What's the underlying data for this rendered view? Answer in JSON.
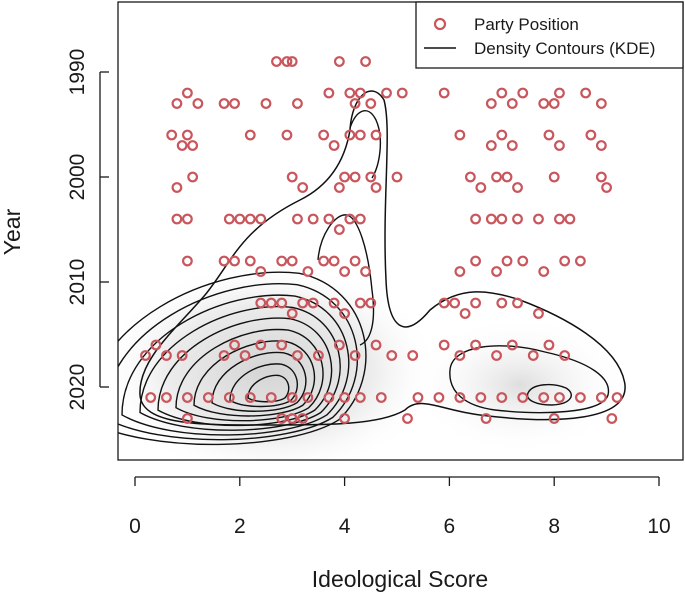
{
  "chart_data": {
    "type": "scatter",
    "title": "",
    "xlabel": "Ideological Score",
    "ylabel": "Year",
    "xlim": [
      -0.5,
      10.3
    ],
    "ylim": [
      2028.5,
      1984.5
    ],
    "y_reversed": true,
    "x_ticks": [
      "0",
      "2",
      "4",
      "6",
      "8",
      "10"
    ],
    "y_ticks": [
      "1990",
      "2000",
      "2010",
      "2020"
    ],
    "grid": false,
    "legend_position": "top-right",
    "colors": {
      "points": "#c8565c",
      "contours": "#111111",
      "density_fill": "#c9c9c9"
    },
    "legend": [
      {
        "label": "Party Position",
        "marker": "circle"
      },
      {
        "label": "Density Contours (KDE)",
        "marker": "line"
      }
    ],
    "series": [
      {
        "name": "Party Position",
        "points": [
          [
            2.7,
            1989
          ],
          [
            2.9,
            1989
          ],
          [
            3.0,
            1989
          ],
          [
            3.9,
            1989
          ],
          [
            4.4,
            1989
          ],
          [
            0.8,
            1993
          ],
          [
            1.0,
            1992
          ],
          [
            1.2,
            1993
          ],
          [
            1.7,
            1993
          ],
          [
            1.9,
            1993
          ],
          [
            2.5,
            1993
          ],
          [
            3.1,
            1993
          ],
          [
            3.7,
            1992
          ],
          [
            4.1,
            1992
          ],
          [
            4.2,
            1993
          ],
          [
            4.3,
            1992
          ],
          [
            4.5,
            1993
          ],
          [
            4.8,
            1992
          ],
          [
            5.1,
            1992
          ],
          [
            5.9,
            1992
          ],
          [
            6.8,
            1993
          ],
          [
            7.0,
            1992
          ],
          [
            7.2,
            1993
          ],
          [
            7.4,
            1992
          ],
          [
            7.8,
            1993
          ],
          [
            8.0,
            1993
          ],
          [
            8.1,
            1992
          ],
          [
            8.6,
            1992
          ],
          [
            8.9,
            1993
          ],
          [
            0.7,
            1996
          ],
          [
            0.9,
            1997
          ],
          [
            1.0,
            1996
          ],
          [
            1.1,
            1997
          ],
          [
            2.2,
            1996
          ],
          [
            2.9,
            1996
          ],
          [
            3.6,
            1996
          ],
          [
            3.8,
            1997
          ],
          [
            4.1,
            1996
          ],
          [
            4.3,
            1996
          ],
          [
            4.6,
            1996
          ],
          [
            6.2,
            1996
          ],
          [
            6.8,
            1997
          ],
          [
            7.0,
            1996
          ],
          [
            7.2,
            1997
          ],
          [
            7.9,
            1996
          ],
          [
            8.1,
            1997
          ],
          [
            8.7,
            1996
          ],
          [
            8.9,
            1997
          ],
          [
            0.8,
            2001
          ],
          [
            1.1,
            2000
          ],
          [
            3.0,
            2000
          ],
          [
            3.2,
            2001
          ],
          [
            3.9,
            2001
          ],
          [
            4.0,
            2000
          ],
          [
            4.2,
            2000
          ],
          [
            4.5,
            2000
          ],
          [
            4.6,
            2001
          ],
          [
            5.0,
            2000
          ],
          [
            6.4,
            2000
          ],
          [
            6.6,
            2001
          ],
          [
            6.9,
            2000
          ],
          [
            7.1,
            2000
          ],
          [
            7.3,
            2001
          ],
          [
            8.0,
            2000
          ],
          [
            8.9,
            2000
          ],
          [
            9.0,
            2001
          ],
          [
            0.8,
            2004
          ],
          [
            1.0,
            2004
          ],
          [
            1.8,
            2004
          ],
          [
            2.0,
            2004
          ],
          [
            2.2,
            2004
          ],
          [
            2.4,
            2004
          ],
          [
            3.1,
            2004
          ],
          [
            3.4,
            2004
          ],
          [
            3.7,
            2004
          ],
          [
            3.9,
            2005
          ],
          [
            4.1,
            2004
          ],
          [
            4.3,
            2004
          ],
          [
            6.5,
            2004
          ],
          [
            6.8,
            2004
          ],
          [
            7.0,
            2004
          ],
          [
            7.3,
            2004
          ],
          [
            7.7,
            2004
          ],
          [
            8.1,
            2004
          ],
          [
            8.3,
            2004
          ],
          [
            1.0,
            2008
          ],
          [
            1.7,
            2008
          ],
          [
            1.9,
            2008
          ],
          [
            2.2,
            2008
          ],
          [
            2.4,
            2009
          ],
          [
            2.8,
            2008
          ],
          [
            3.0,
            2008
          ],
          [
            3.3,
            2009
          ],
          [
            3.6,
            2008
          ],
          [
            3.8,
            2008
          ],
          [
            4.0,
            2009
          ],
          [
            4.2,
            2008
          ],
          [
            4.4,
            2009
          ],
          [
            6.2,
            2009
          ],
          [
            6.5,
            2008
          ],
          [
            6.9,
            2009
          ],
          [
            7.1,
            2008
          ],
          [
            7.4,
            2008
          ],
          [
            7.8,
            2009
          ],
          [
            8.2,
            2008
          ],
          [
            8.5,
            2008
          ],
          [
            2.4,
            2012
          ],
          [
            2.6,
            2012
          ],
          [
            2.8,
            2012
          ],
          [
            3.0,
            2013
          ],
          [
            3.2,
            2012
          ],
          [
            3.4,
            2012
          ],
          [
            3.8,
            2012
          ],
          [
            4.0,
            2013
          ],
          [
            4.3,
            2012
          ],
          [
            4.5,
            2012
          ],
          [
            5.9,
            2012
          ],
          [
            6.1,
            2012
          ],
          [
            6.3,
            2013
          ],
          [
            6.5,
            2012
          ],
          [
            7.0,
            2012
          ],
          [
            7.3,
            2012
          ],
          [
            7.7,
            2013
          ],
          [
            0.2,
            2017
          ],
          [
            0.4,
            2016
          ],
          [
            0.6,
            2017
          ],
          [
            0.9,
            2017
          ],
          [
            1.7,
            2017
          ],
          [
            1.9,
            2016
          ],
          [
            2.1,
            2017
          ],
          [
            2.4,
            2016
          ],
          [
            2.8,
            2016
          ],
          [
            3.1,
            2017
          ],
          [
            3.5,
            2017
          ],
          [
            3.9,
            2016
          ],
          [
            4.2,
            2017
          ],
          [
            4.6,
            2016
          ],
          [
            4.9,
            2017
          ],
          [
            5.3,
            2017
          ],
          [
            5.9,
            2016
          ],
          [
            6.2,
            2017
          ],
          [
            6.5,
            2016
          ],
          [
            6.9,
            2017
          ],
          [
            7.2,
            2016
          ],
          [
            7.6,
            2017
          ],
          [
            7.9,
            2016
          ],
          [
            8.2,
            2017
          ],
          [
            0.3,
            2021
          ],
          [
            0.6,
            2021
          ],
          [
            1.0,
            2021
          ],
          [
            1.4,
            2021
          ],
          [
            1.8,
            2021
          ],
          [
            2.2,
            2021
          ],
          [
            2.6,
            2021
          ],
          [
            3.0,
            2021
          ],
          [
            3.3,
            2021
          ],
          [
            3.7,
            2021
          ],
          [
            4.0,
            2021
          ],
          [
            4.3,
            2021
          ],
          [
            4.7,
            2021
          ],
          [
            5.4,
            2021
          ],
          [
            5.8,
            2021
          ],
          [
            6.2,
            2021
          ],
          [
            6.6,
            2021
          ],
          [
            7.0,
            2021
          ],
          [
            7.4,
            2021
          ],
          [
            7.8,
            2021
          ],
          [
            8.1,
            2021
          ],
          [
            8.5,
            2021
          ],
          [
            8.9,
            2021
          ],
          [
            9.2,
            2021
          ],
          [
            1.0,
            2023
          ],
          [
            2.8,
            2023
          ],
          [
            3.0,
            2023
          ],
          [
            3.2,
            2023
          ],
          [
            4.0,
            2023
          ],
          [
            5.2,
            2023
          ],
          [
            6.7,
            2023
          ],
          [
            8.0,
            2023
          ],
          [
            9.1,
            2023
          ]
        ]
      },
      {
        "name": "Density Contours (KDE)",
        "peaks": [
          {
            "x": 2.5,
            "y": 2020.5,
            "height": 1.0
          },
          {
            "x": 3.6,
            "y": 2016.0,
            "height": 0.6
          },
          {
            "x": 4.4,
            "y": 1997.0,
            "height": 0.12
          },
          {
            "x": 7.9,
            "y": 2021.0,
            "height": 0.35
          },
          {
            "x": 6.6,
            "y": 2017.5,
            "height": 0.2
          }
        ],
        "levels": [
          0.05,
          0.12,
          0.2,
          0.3,
          0.4,
          0.5,
          0.6,
          0.7,
          0.8,
          0.9
        ]
      }
    ]
  }
}
